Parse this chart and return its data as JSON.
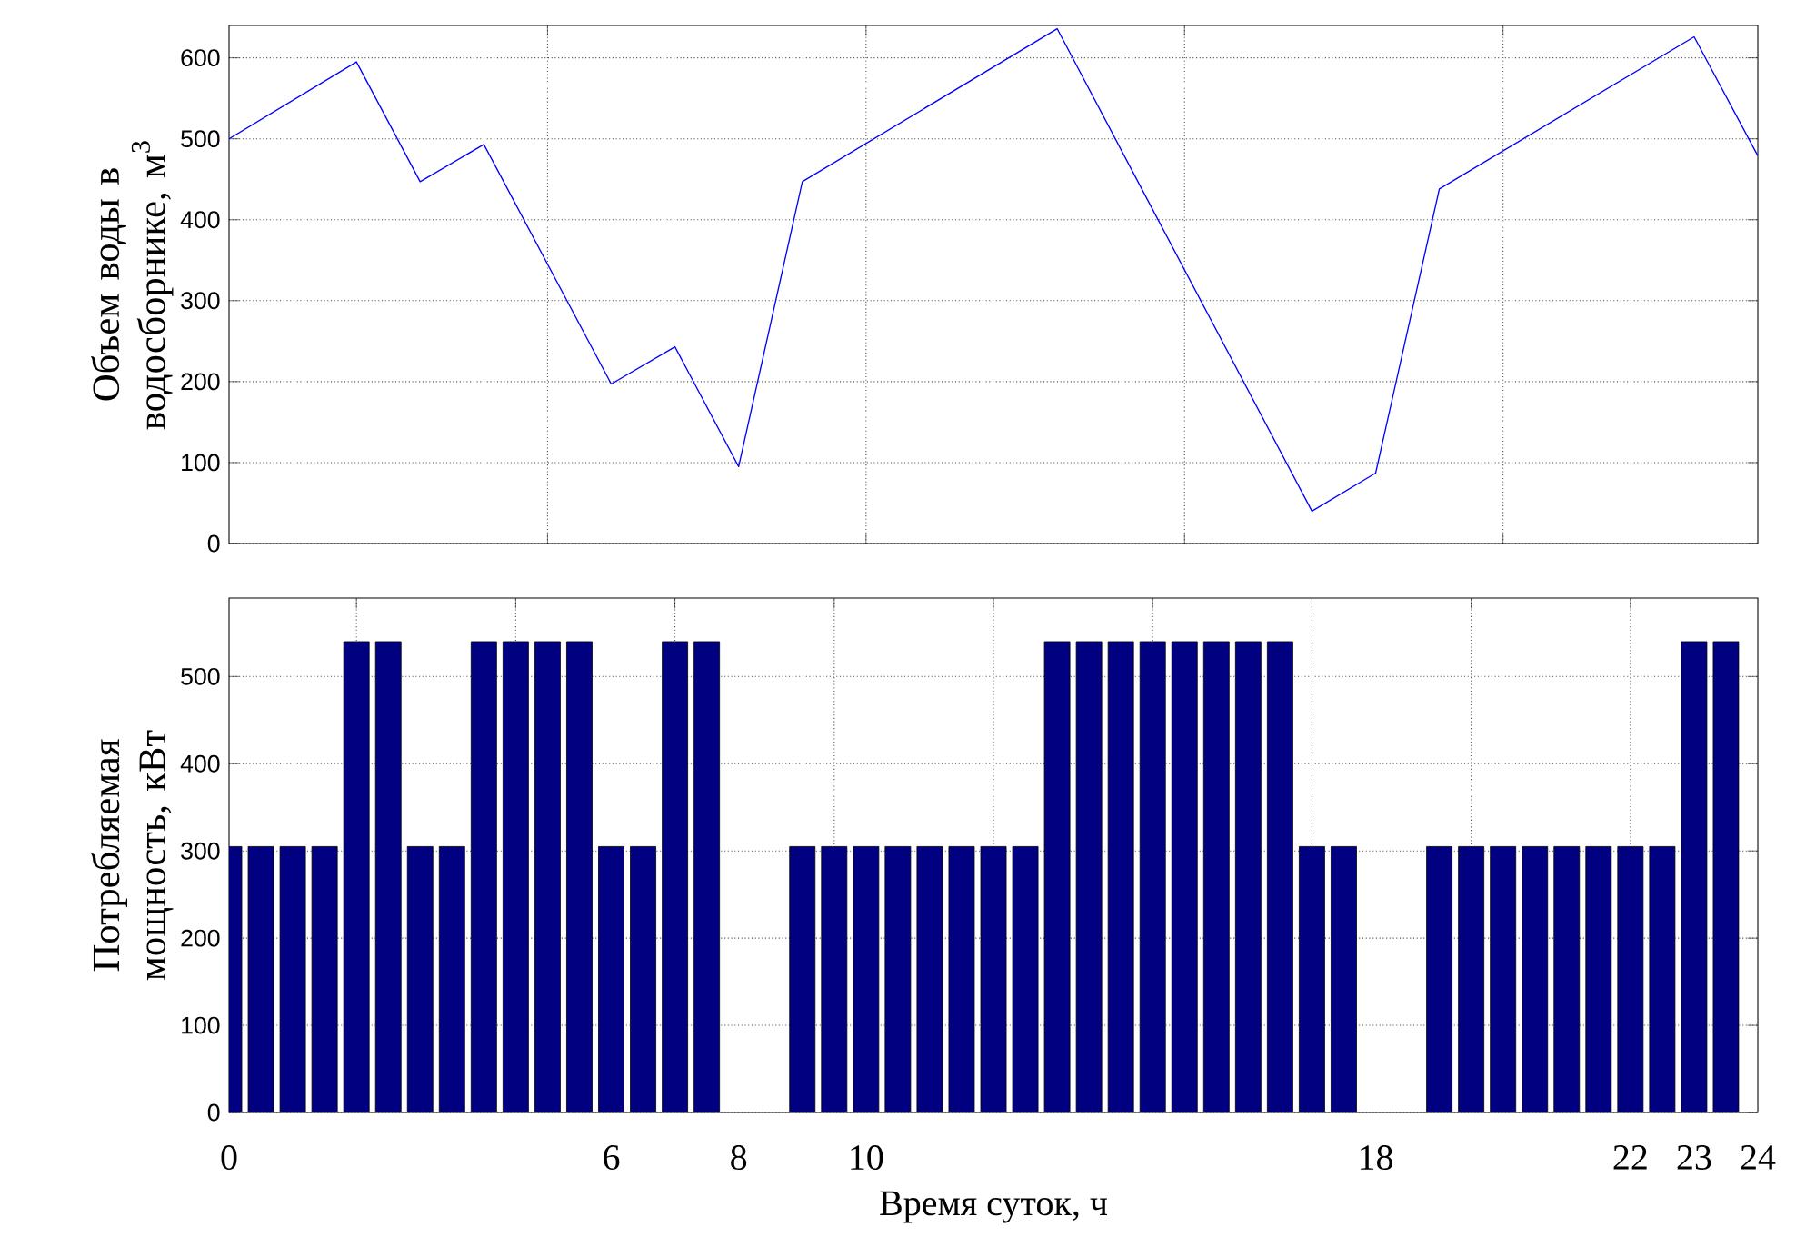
{
  "chart_data": [
    {
      "type": "line",
      "ylabel": "Объем воды в водосборнике, м$^{3}$",
      "x": [
        0,
        2,
        3,
        4,
        6,
        7,
        8,
        9,
        13,
        17,
        18,
        19,
        23,
        24
      ],
      "values": [
        500,
        595,
        447,
        493,
        197,
        243,
        95,
        447,
        636,
        40,
        87,
        438,
        626,
        479
      ],
      "color": "#0000ff",
      "xlim": [
        0,
        24
      ],
      "ylim": [
        0,
        640
      ],
      "xticks": [
        {
          "value": 5,
          "label": null
        },
        {
          "value": 10,
          "label": null
        },
        {
          "value": 15,
          "label": null
        },
        {
          "value": 20,
          "label": null
        }
      ],
      "yticks": [
        0,
        100,
        200,
        300,
        400,
        500,
        600
      ],
      "grid": true,
      "tick_labels": "y"
    },
    {
      "type": "bar",
      "ylabel": "Потребляемая мощность, кВт",
      "xlabel": "Время суток, ч",
      "x": [
        0,
        0.5,
        1,
        1.5,
        2,
        2.5,
        3,
        3.5,
        4,
        4.5,
        5,
        5.5,
        6,
        6.5,
        7,
        7.5,
        8,
        8.5,
        9,
        9.5,
        10,
        10.5,
        11,
        11.5,
        12,
        12.5,
        13,
        13.5,
        14,
        14.5,
        15,
        15.5,
        16,
        16.5,
        17,
        17.5,
        18,
        18.5,
        19,
        19.5,
        20,
        20.5,
        21,
        21.5,
        22,
        22.5,
        23,
        23.5
      ],
      "values": [
        305,
        305,
        305,
        305,
        540,
        540,
        305,
        305,
        540,
        540,
        540,
        540,
        305,
        305,
        540,
        540,
        null,
        null,
        305,
        305,
        305,
        305,
        305,
        305,
        305,
        305,
        540,
        540,
        540,
        540,
        540,
        540,
        540,
        540,
        305,
        305,
        null,
        null,
        305,
        305,
        305,
        305,
        305,
        305,
        305,
        305,
        540,
        540
      ],
      "color": "#000080",
      "xlim": [
        0,
        24
      ],
      "ylim": [
        0,
        590
      ],
      "xticks": [
        {
          "value": 2,
          "label": null
        },
        {
          "value": 4.5,
          "label": null
        },
        {
          "value": 7,
          "label": null
        },
        {
          "value": 9.5,
          "label": null
        },
        {
          "value": 12,
          "label": null
        },
        {
          "value": 14.5,
          "label": null
        },
        {
          "value": 17,
          "label": null
        },
        {
          "value": 19.5,
          "label": null
        },
        {
          "value": 22,
          "label": null
        },
        0,
        6,
        8,
        10,
        18,
        22,
        23,
        24
      ],
      "yticks": [
        0,
        100,
        200,
        300,
        400,
        500
      ],
      "grid": true
    }
  ]
}
